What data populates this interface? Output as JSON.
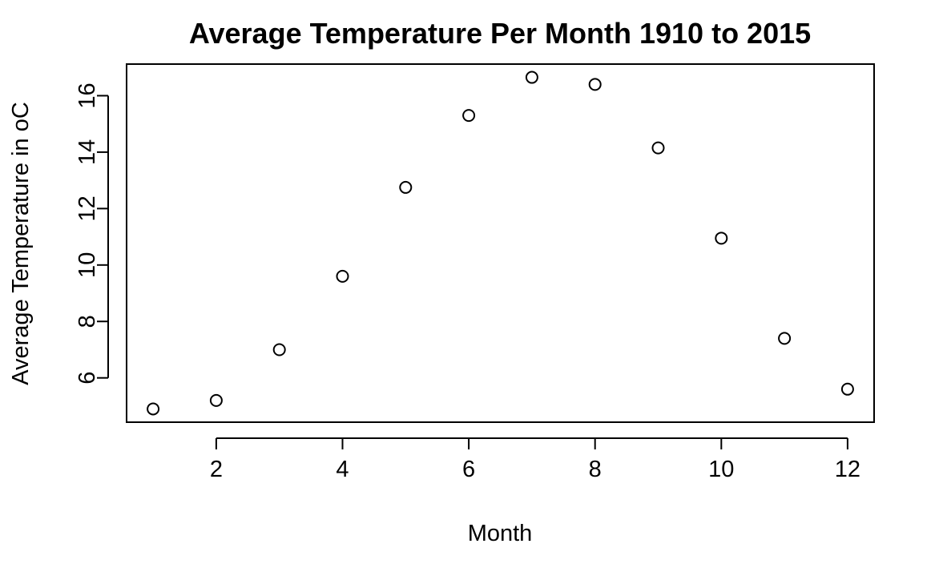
{
  "chart_data": {
    "type": "scatter",
    "title": "Average Temperature Per Month 1910 to 2015",
    "xlabel": "Month",
    "ylabel": "Average Temperature in oC",
    "x": [
      1,
      2,
      3,
      4,
      5,
      6,
      7,
      8,
      9,
      10,
      11,
      12
    ],
    "y": [
      4.9,
      5.2,
      7.0,
      9.6,
      12.75,
      15.3,
      16.65,
      16.4,
      14.15,
      10.95,
      7.4,
      5.6
    ],
    "xlim": [
      0.58,
      12.42
    ],
    "ylim": [
      4.43,
      17.12
    ],
    "xticks": [
      2,
      4,
      6,
      8,
      10,
      12
    ],
    "yticks": [
      6,
      8,
      10,
      12,
      14,
      16
    ],
    "marker": "open-circle",
    "grid": false,
    "legend": "none"
  }
}
